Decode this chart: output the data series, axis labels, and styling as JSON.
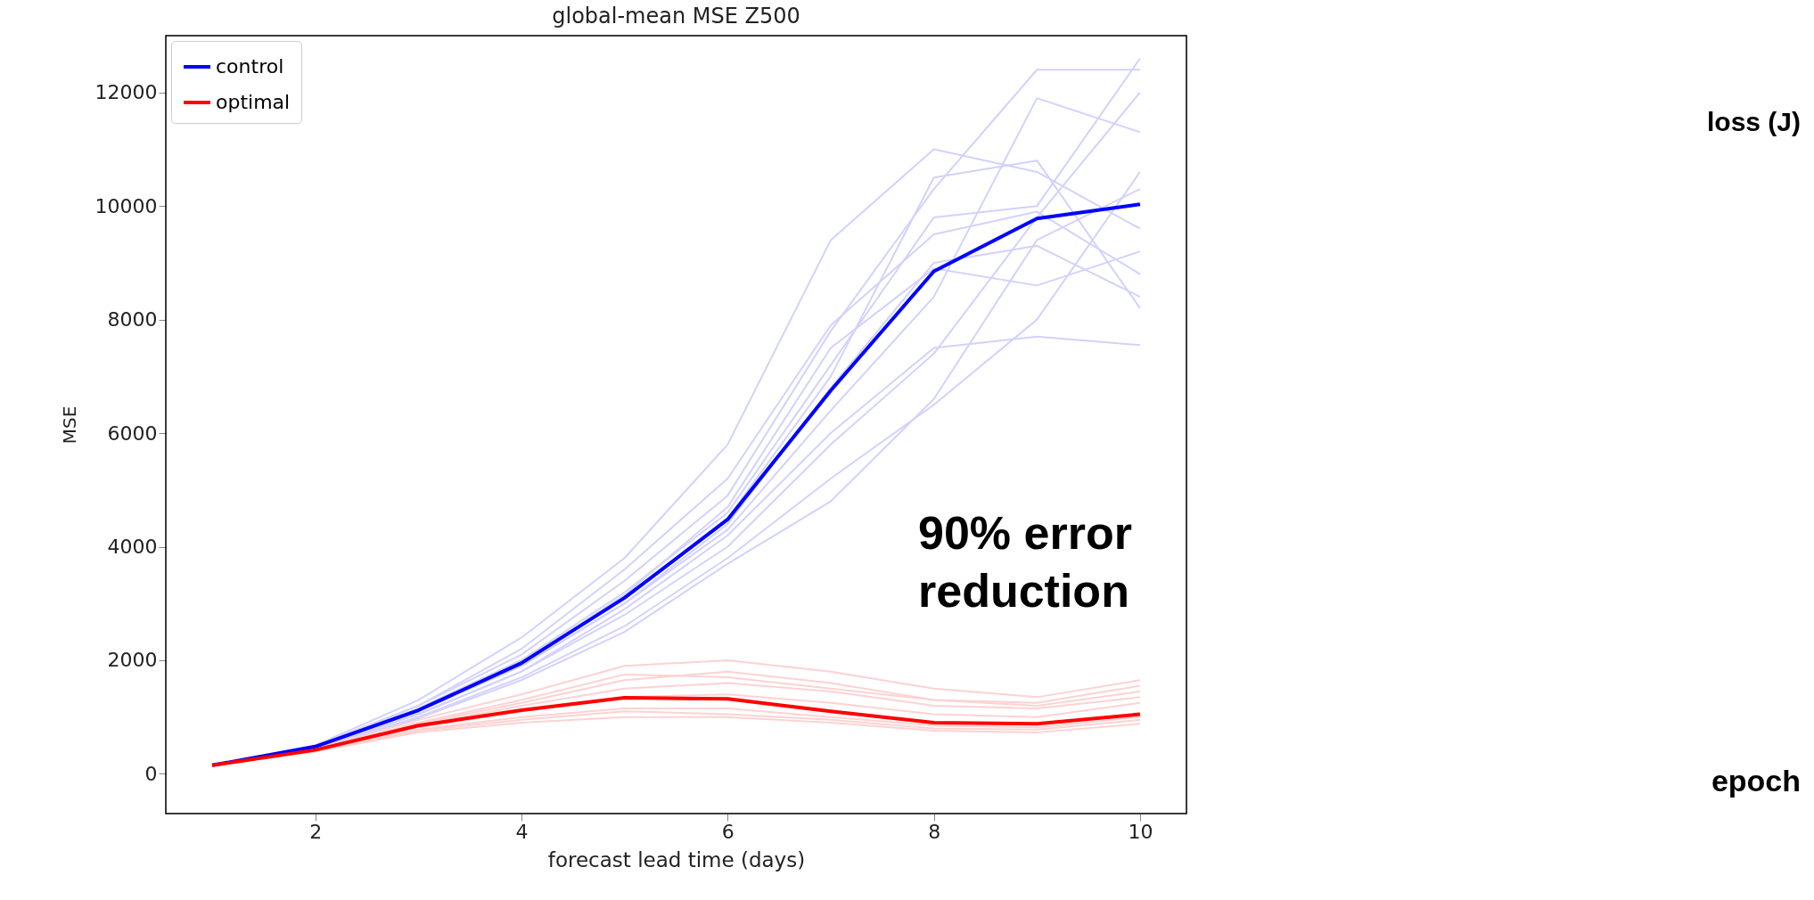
{
  "chart_data": {
    "type": "line",
    "title": "global-mean MSE Z500",
    "xlabel": "forecast lead time (days)",
    "ylabel": "MSE",
    "x": [
      1,
      2,
      3,
      4,
      5,
      6,
      7,
      8,
      9,
      10
    ],
    "xlim": [
      0.55,
      10.45
    ],
    "ylim": [
      -700,
      13000
    ],
    "xticks": [
      2,
      4,
      6,
      8,
      10
    ],
    "yticks": [
      0,
      2000,
      4000,
      6000,
      8000,
      10000,
      12000
    ],
    "grid": false,
    "legend": "top left",
    "marker": "none",
    "line_style": "solid",
    "annotations": [
      "90% error reduction",
      "loss (J)",
      "epoch"
    ],
    "series": [
      {
        "color": "#d2d2fc",
        "values": [
          150,
          500,
          1300,
          2400,
          3800,
          5800,
          9400,
          11000,
          10600,
          9600
        ]
      },
      {
        "color": "#d2d2fc",
        "values": [
          150,
          480,
          1200,
          2100,
          3400,
          4900,
          7800,
          10300,
          12400,
          12400
        ]
      },
      {
        "color": "#d2d2fc",
        "values": [
          150,
          470,
          1100,
          1900,
          3000,
          4300,
          6400,
          8400,
          11900,
          11300
        ]
      },
      {
        "color": "#d2d2fc",
        "values": [
          150,
          490,
          1150,
          2000,
          3200,
          4600,
          7200,
          9800,
          10000,
          12600
        ]
      },
      {
        "color": "#d2d2fc",
        "values": [
          150,
          460,
          1050,
          1800,
          2800,
          4000,
          5800,
          7400,
          9800,
          12000
        ]
      },
      {
        "color": "#d2d2fc",
        "values": [
          150,
          470,
          1100,
          1900,
          3000,
          4400,
          6800,
          9000,
          9300,
          8400
        ]
      },
      {
        "color": "#d2d2fc",
        "values": [
          150,
          450,
          1000,
          1700,
          2600,
          3800,
          5200,
          6500,
          8000,
          10600
        ]
      },
      {
        "color": "#d2d2fc",
        "values": [
          150,
          480,
          1150,
          2000,
          3100,
          4500,
          7000,
          10500,
          10800,
          8200
        ]
      },
      {
        "color": "#d2d2fc",
        "values": [
          150,
          460,
          1050,
          1800,
          2900,
          4200,
          6000,
          7500,
          7700,
          7550
        ]
      },
      {
        "color": "#d2d2fc",
        "values": [
          150,
          470,
          1100,
          1950,
          3150,
          4700,
          7500,
          8900,
          8600,
          9200
        ]
      },
      {
        "color": "#d2d2fc",
        "values": [
          150,
          440,
          980,
          1650,
          2500,
          3700,
          4800,
          6600,
          9400,
          10300
        ]
      },
      {
        "color": "#d2d2fc",
        "values": [
          150,
          490,
          1200,
          2200,
          3600,
          5200,
          7900,
          9500,
          9900,
          8800
        ]
      },
      {
        "color": "#fdd2d2",
        "values": [
          150,
          430,
          950,
          1400,
          1900,
          2000,
          1800,
          1500,
          1350,
          1650
        ]
      },
      {
        "color": "#fdd2d2",
        "values": [
          150,
          420,
          880,
          1250,
          1650,
          1800,
          1600,
          1300,
          1200,
          1450
        ]
      },
      {
        "color": "#fdd2d2",
        "values": [
          150,
          410,
          820,
          1100,
          1350,
          1400,
          1250,
          1050,
          1000,
          1250
        ]
      },
      {
        "color": "#fdd2d2",
        "values": [
          150,
          400,
          780,
          1000,
          1150,
          1150,
          1000,
          850,
          820,
          1000
        ]
      },
      {
        "color": "#fdd2d2",
        "values": [
          150,
          390,
          730,
          900,
          1000,
          1000,
          900,
          760,
          730,
          880
        ]
      },
      {
        "color": "#fdd2d2",
        "values": [
          150,
          410,
          850,
          1200,
          1500,
          1600,
          1450,
          1200,
          1150,
          1350
        ]
      },
      {
        "color": "#fdd2d2",
        "values": [
          150,
          400,
          760,
          950,
          1100,
          1050,
          950,
          800,
          780,
          950
        ]
      },
      {
        "color": "#fdd2d2",
        "values": [
          150,
          420,
          900,
          1300,
          1750,
          1700,
          1500,
          1300,
          1250,
          1550
        ]
      },
      {
        "name": "control",
        "color": "#0000ff",
        "values": [
          150,
          480,
          1120,
          1950,
          3100,
          4480,
          6750,
          8850,
          9780,
          10030
        ]
      },
      {
        "name": "optimal",
        "color": "#ff0000",
        "values": [
          150,
          420,
          850,
          1120,
          1340,
          1320,
          1100,
          900,
          880,
          1050
        ]
      }
    ]
  }
}
